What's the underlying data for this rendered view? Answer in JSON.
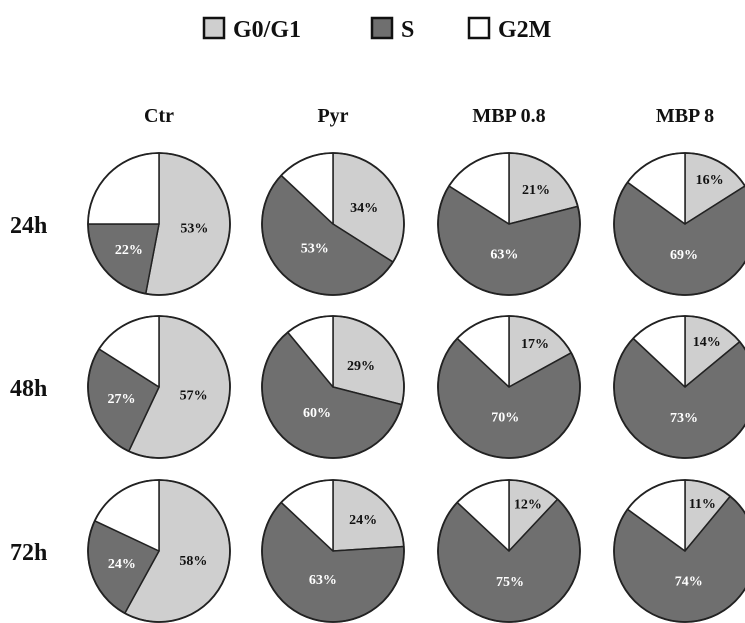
{
  "chart_data": {
    "type": "pie",
    "legend": {
      "placement": "top-center",
      "items": [
        {
          "label": "G0/G1",
          "color": "#cfcfcf"
        },
        {
          "label": "S",
          "color": "#6f6f6f"
        },
        {
          "label": "G2M",
          "color": "#ffffff"
        }
      ]
    },
    "columns": [
      "Ctr",
      "Pyr",
      "MBP 0.8",
      "MBP 8"
    ],
    "rows": [
      "24h",
      "48h",
      "72h"
    ],
    "slice_order": [
      "G0/G1",
      "S",
      "G2M"
    ],
    "pies": [
      [
        {
          "values": [
            53,
            22,
            25
          ],
          "labels": [
            "53%",
            "22%",
            ""
          ]
        },
        {
          "values": [
            34,
            53,
            13
          ],
          "labels": [
            "34%",
            "53%",
            ""
          ]
        },
        {
          "values": [
            21,
            63,
            16
          ],
          "labels": [
            "21%",
            "63%",
            ""
          ]
        },
        {
          "values": [
            16,
            69,
            15
          ],
          "labels": [
            "16%",
            "69%",
            ""
          ]
        }
      ],
      [
        {
          "values": [
            57,
            27,
            16
          ],
          "labels": [
            "57%",
            "27%",
            ""
          ]
        },
        {
          "values": [
            29,
            60,
            11
          ],
          "labels": [
            "29%",
            "60%",
            ""
          ]
        },
        {
          "values": [
            17,
            70,
            13
          ],
          "labels": [
            "17%",
            "70%",
            ""
          ]
        },
        {
          "values": [
            14,
            73,
            13
          ],
          "labels": [
            "14%",
            "73%",
            ""
          ]
        }
      ],
      [
        {
          "values": [
            58,
            24,
            18
          ],
          "labels": [
            "58%",
            "24%",
            ""
          ]
        },
        {
          "values": [
            24,
            63,
            13
          ],
          "labels": [
            "24%",
            "63%",
            ""
          ]
        },
        {
          "values": [
            12,
            75,
            13
          ],
          "labels": [
            "12%",
            "75%",
            ""
          ]
        },
        {
          "values": [
            11,
            74,
            15
          ],
          "labels": [
            "11%",
            "74%",
            ""
          ]
        }
      ]
    ]
  }
}
